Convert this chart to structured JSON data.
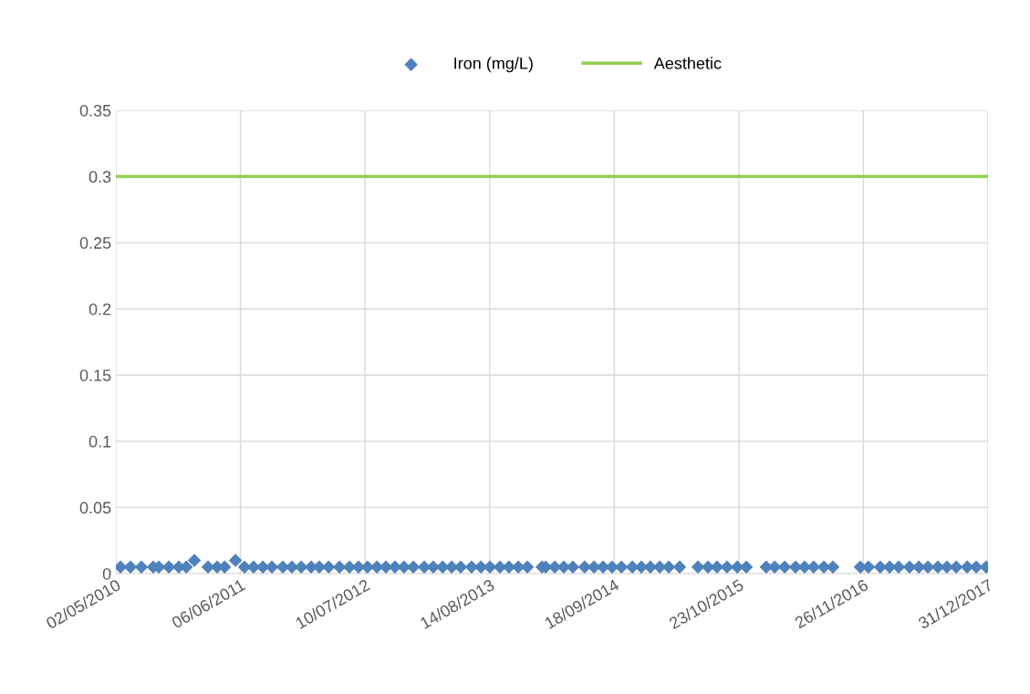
{
  "chart_data": {
    "type": "scatter",
    "legend": "top",
    "grid": true,
    "xlim": [
      "2010-05-02",
      "2017-12-31"
    ],
    "xticks": [
      {
        "value": "2010-05-02",
        "label": "02/05/2010"
      },
      {
        "value": "2011-06-06",
        "label": "06/06/2011"
      },
      {
        "value": "2012-07-10",
        "label": "10/07/2012"
      },
      {
        "value": "2013-08-14",
        "label": "14/08/2013"
      },
      {
        "value": "2014-09-18",
        "label": "18/09/2014"
      },
      {
        "value": "2015-10-23",
        "label": "23/10/2015"
      },
      {
        "value": "2016-11-26",
        "label": "26/11/2016"
      },
      {
        "value": "2017-12-31",
        "label": "31/12/2017"
      }
    ],
    "ylim": [
      0,
      0.35
    ],
    "yticks": [
      0,
      0.05,
      0.1,
      0.15,
      0.2,
      0.25,
      0.3,
      0.35
    ],
    "series": [
      {
        "name": "Iron (mg/L)",
        "marker": "diamond",
        "color": "#4f81bd",
        "x": [
          "2010-05-17",
          "2010-06-18",
          "2010-07-23",
          "2010-08-30",
          "2010-09-17",
          "2010-10-19",
          "2010-11-20",
          "2010-12-14",
          "2011-01-09",
          "2011-02-22",
          "2011-03-23",
          "2011-04-16",
          "2011-05-21",
          "2011-06-19",
          "2011-07-18",
          "2011-08-17",
          "2011-09-15",
          "2011-10-20",
          "2011-11-18",
          "2011-12-18",
          "2012-01-19",
          "2012-02-14",
          "2012-03-15",
          "2012-04-19",
          "2012-05-21",
          "2012-06-19",
          "2012-07-18",
          "2012-08-17",
          "2012-09-15",
          "2012-10-14",
          "2012-11-12",
          "2012-12-12",
          "2013-01-16",
          "2013-02-14",
          "2013-03-16",
          "2013-04-14",
          "2013-05-13",
          "2013-06-17",
          "2013-07-17",
          "2013-08-15",
          "2013-09-16",
          "2013-10-15",
          "2013-11-14",
          "2013-12-13",
          "2014-01-29",
          "2014-02-10",
          "2014-03-11",
          "2014-04-09",
          "2014-05-08",
          "2014-06-15",
          "2014-07-15",
          "2014-08-13",
          "2014-09-11",
          "2014-10-11",
          "2014-11-15",
          "2014-12-14",
          "2015-01-12",
          "2015-02-11",
          "2015-03-12",
          "2015-04-16",
          "2015-06-14",
          "2015-07-16",
          "2015-08-14",
          "2015-09-15",
          "2015-10-18",
          "2015-11-16",
          "2016-01-19",
          "2016-02-15",
          "2016-03-18",
          "2016-04-22",
          "2016-05-21",
          "2016-06-19",
          "2016-07-22",
          "2016-08-20",
          "2016-11-16",
          "2016-12-12",
          "2017-01-19",
          "2017-02-18",
          "2017-03-19",
          "2017-04-23",
          "2017-05-23",
          "2017-06-21",
          "2017-07-23",
          "2017-08-21",
          "2017-09-20",
          "2017-10-25",
          "2017-11-23",
          "2017-12-25"
        ],
        "values": [
          0.005,
          0.005,
          0.005,
          0.005,
          0.005,
          0.005,
          0.005,
          0.005,
          0.01,
          0.005,
          0.005,
          0.005,
          0.01,
          0.005,
          0.005,
          0.005,
          0.005,
          0.005,
          0.005,
          0.005,
          0.005,
          0.005,
          0.005,
          0.005,
          0.005,
          0.005,
          0.005,
          0.005,
          0.005,
          0.005,
          0.005,
          0.005,
          0.005,
          0.005,
          0.005,
          0.005,
          0.005,
          0.005,
          0.005,
          0.005,
          0.005,
          0.005,
          0.005,
          0.005,
          0.005,
          0.005,
          0.005,
          0.005,
          0.005,
          0.005,
          0.005,
          0.005,
          0.005,
          0.005,
          0.005,
          0.005,
          0.005,
          0.005,
          0.005,
          0.005,
          0.005,
          0.005,
          0.005,
          0.005,
          0.005,
          0.005,
          0.005,
          0.005,
          0.005,
          0.005,
          0.005,
          0.005,
          0.005,
          0.005,
          0.005,
          0.005,
          0.005,
          0.005,
          0.005,
          0.005,
          0.005,
          0.005,
          0.005,
          0.005,
          0.005,
          0.005,
          0.005,
          0.005
        ]
      },
      {
        "name": "Aesthetic",
        "type": "line",
        "color": "#92d050",
        "x": [
          "2010-05-02",
          "2017-12-31"
        ],
        "values": [
          0.3,
          0.3
        ]
      }
    ]
  }
}
